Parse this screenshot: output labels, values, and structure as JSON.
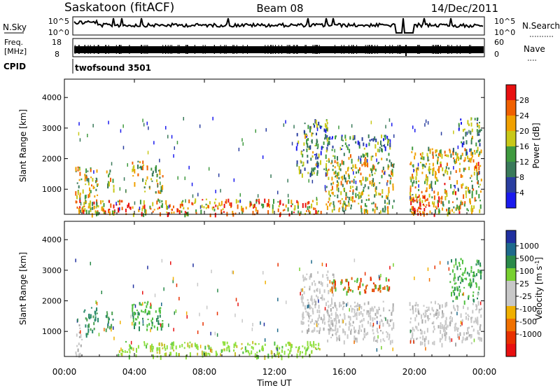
{
  "header": {
    "station": "Saskatoon (fitACF)",
    "beam": "Beam 08",
    "date": "14/Dec/2011"
  },
  "noise_panel": {
    "left_label": "N.Sky",
    "right_label": "N.Search",
    "left_ticks": [
      "10^5",
      "10^0"
    ],
    "right_ticks": [
      "10^5",
      "10^0"
    ]
  },
  "freq_panel": {
    "left_label_line1": "Freq.",
    "left_label_line2": "[MHz]",
    "right_label": "Nave",
    "left_ticks": [
      "18",
      "8"
    ],
    "right_ticks": [
      "60",
      "0"
    ]
  },
  "cpid_panel": {
    "label": "CPID",
    "program": "twofsound 3501"
  },
  "time_axis": {
    "label": "Time UT",
    "ticks": [
      "00:00",
      "04:00",
      "08:00",
      "12:00",
      "16:00",
      "20:00",
      "00:00"
    ]
  },
  "colors": {
    "power_scale": [
      "#1a1aee",
      "#2a3ea0",
      "#3a7a5a",
      "#3f9a3f",
      "#c8c818",
      "#f0a000",
      "#f06000",
      "#e81010"
    ],
    "velocity_scale": [
      "#2030a0",
      "#1e6a8c",
      "#2a8a4a",
      "#78d030",
      "#c8c8c8",
      "#c8c8c8",
      "#f0b000",
      "#f07000",
      "#e83000",
      "#e81010"
    ]
  },
  "chart_data": [
    {
      "type": "heatmap",
      "name": "power",
      "ylabel": "Slant Range [km]",
      "yticks": [
        "1000",
        "2000",
        "3000",
        "4000"
      ],
      "ylim": [
        180,
        4600
      ],
      "xlim": [
        0,
        24
      ],
      "colorbar": {
        "label": "Power [dB]",
        "ticks": [
          "4",
          "8",
          "12",
          "16",
          "20",
          "24",
          "28"
        ],
        "range": [
          0,
          32
        ]
      },
      "regions": [
        {
          "t": [
            0.6,
            1.9
          ],
          "r": [
            250,
            1800
          ],
          "level": 0.55
        },
        {
          "t": [
            2.3,
            2.8
          ],
          "r": [
            1000,
            1700
          ],
          "level": 0.55
        },
        {
          "t": [
            3.8,
            4.5
          ],
          "r": [
            1200,
            2000
          ],
          "level": 0.6
        },
        {
          "t": [
            4.5,
            5.6
          ],
          "r": [
            900,
            1800
          ],
          "level": 0.55
        },
        {
          "t": [
            0.6,
            14.7
          ],
          "r": [
            200,
            700
          ],
          "level": 0.7
        },
        {
          "t": [
            13.2,
            15.0
          ],
          "r": [
            1500,
            3300
          ],
          "level": 0.35
        },
        {
          "t": [
            14.9,
            18.8
          ],
          "r": [
            300,
            2200
          ],
          "level": 0.55
        },
        {
          "t": [
            15.0,
            18.6
          ],
          "r": [
            2300,
            2800
          ],
          "level": 0.3
        },
        {
          "t": [
            19.7,
            23.8
          ],
          "r": [
            250,
            2400
          ],
          "level": 0.6
        },
        {
          "t": [
            19.7,
            21.4
          ],
          "r": [
            200,
            800
          ],
          "level": 0.95
        },
        {
          "t": [
            22.5,
            23.8
          ],
          "r": [
            2500,
            3400
          ],
          "level": 0.35
        }
      ]
    },
    {
      "type": "heatmap",
      "name": "velocity",
      "ylabel": "Slant Range [km]",
      "yticks": [
        "1000",
        "2000",
        "3000",
        "4000"
      ],
      "ylim": [
        180,
        4600
      ],
      "xlim": [
        0,
        24
      ],
      "colorbar": {
        "label": "Velocity [m s^-1]",
        "ticks": [
          "1000",
          "500",
          "100",
          "25",
          "-25",
          "-100",
          "-500",
          "-1000"
        ]
      },
      "regions": [
        {
          "t": [
            0.6,
            1.0
          ],
          "r": [
            250,
            1300
          ],
          "kind": "ground"
        },
        {
          "t": [
            1.0,
            1.9
          ],
          "r": [
            900,
            1800
          ],
          "kind": "teal"
        },
        {
          "t": [
            2.3,
            2.8
          ],
          "r": [
            1000,
            1700
          ],
          "kind": "teal"
        },
        {
          "t": [
            3.8,
            5.6
          ],
          "r": [
            1000,
            2000
          ],
          "kind": "green"
        },
        {
          "t": [
            3.0,
            14.6
          ],
          "r": [
            200,
            700
          ],
          "kind": "lightgreen"
        },
        {
          "t": [
            13.5,
            15.5
          ],
          "r": [
            1000,
            3000
          ],
          "kind": "ground"
        },
        {
          "t": [
            15.0,
            18.8
          ],
          "r": [
            700,
            2000
          ],
          "kind": "ground"
        },
        {
          "t": [
            15.2,
            18.6
          ],
          "r": [
            2300,
            2800
          ],
          "kind": "orange"
        },
        {
          "t": [
            19.7,
            23.8
          ],
          "r": [
            600,
            2000
          ],
          "kind": "ground"
        },
        {
          "t": [
            22.0,
            23.8
          ],
          "r": [
            2000,
            3400
          ],
          "kind": "green"
        }
      ]
    }
  ]
}
